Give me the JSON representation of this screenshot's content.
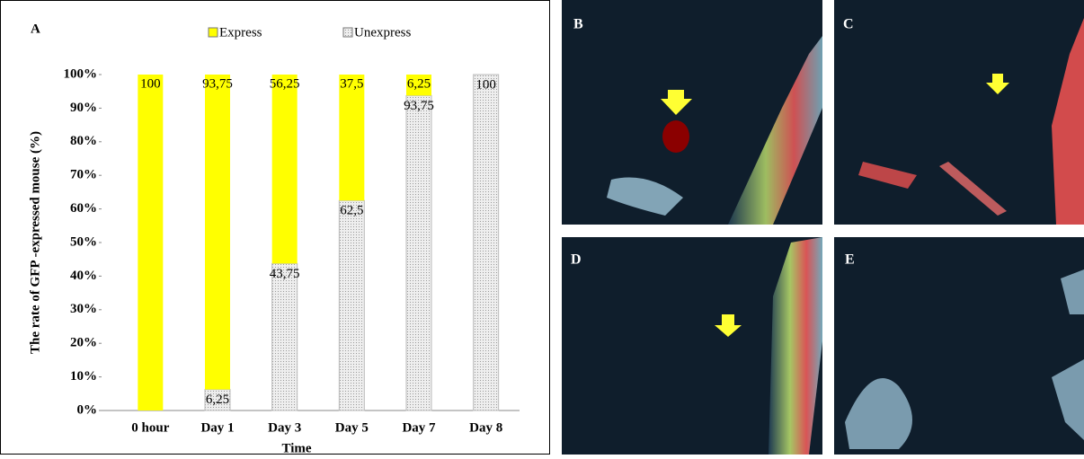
{
  "chart_data": {
    "type": "stacked_bar",
    "panel_label": "A",
    "x_label": "Time",
    "y_label": "The rate of GFP -expressed mouse (%)",
    "categories": [
      "0 hour",
      "Day 1",
      "Day 3",
      "Day 5",
      "Day 7",
      "Day 8"
    ],
    "series": [
      {
        "name": "Express",
        "color": "#ffff00",
        "values": [
          100,
          93.75,
          56.25,
          37.5,
          6.25,
          0
        ],
        "value_labels": [
          "100",
          "93,75",
          "56,25",
          "37,5",
          "6,25",
          null
        ]
      },
      {
        "name": "Unexpress",
        "color": "#d9d9d9",
        "values": [
          0,
          6.25,
          43.75,
          62.5,
          93.75,
          100
        ],
        "value_labels": [
          null,
          "6,25",
          "43,75",
          "62,5",
          "93,75",
          "100"
        ]
      }
    ],
    "ylim": [
      0,
      100
    ],
    "yticks": [
      {
        "value": 0,
        "label": "0%"
      },
      {
        "value": 10,
        "label": "10%"
      },
      {
        "value": 20,
        "label": "20%"
      },
      {
        "value": 30,
        "label": "30%"
      },
      {
        "value": 40,
        "label": "40%"
      },
      {
        "value": 50,
        "label": "50%"
      },
      {
        "value": 60,
        "label": "60%"
      },
      {
        "value": 70,
        "label": "70%"
      },
      {
        "value": 80,
        "label": "80%"
      },
      {
        "value": 90,
        "label": "90%"
      },
      {
        "value": 100,
        "label": "100%"
      }
    ],
    "legend": "top"
  },
  "panels": [
    {
      "label": "B"
    },
    {
      "label": "C"
    },
    {
      "label": "D"
    },
    {
      "label": "E"
    }
  ]
}
